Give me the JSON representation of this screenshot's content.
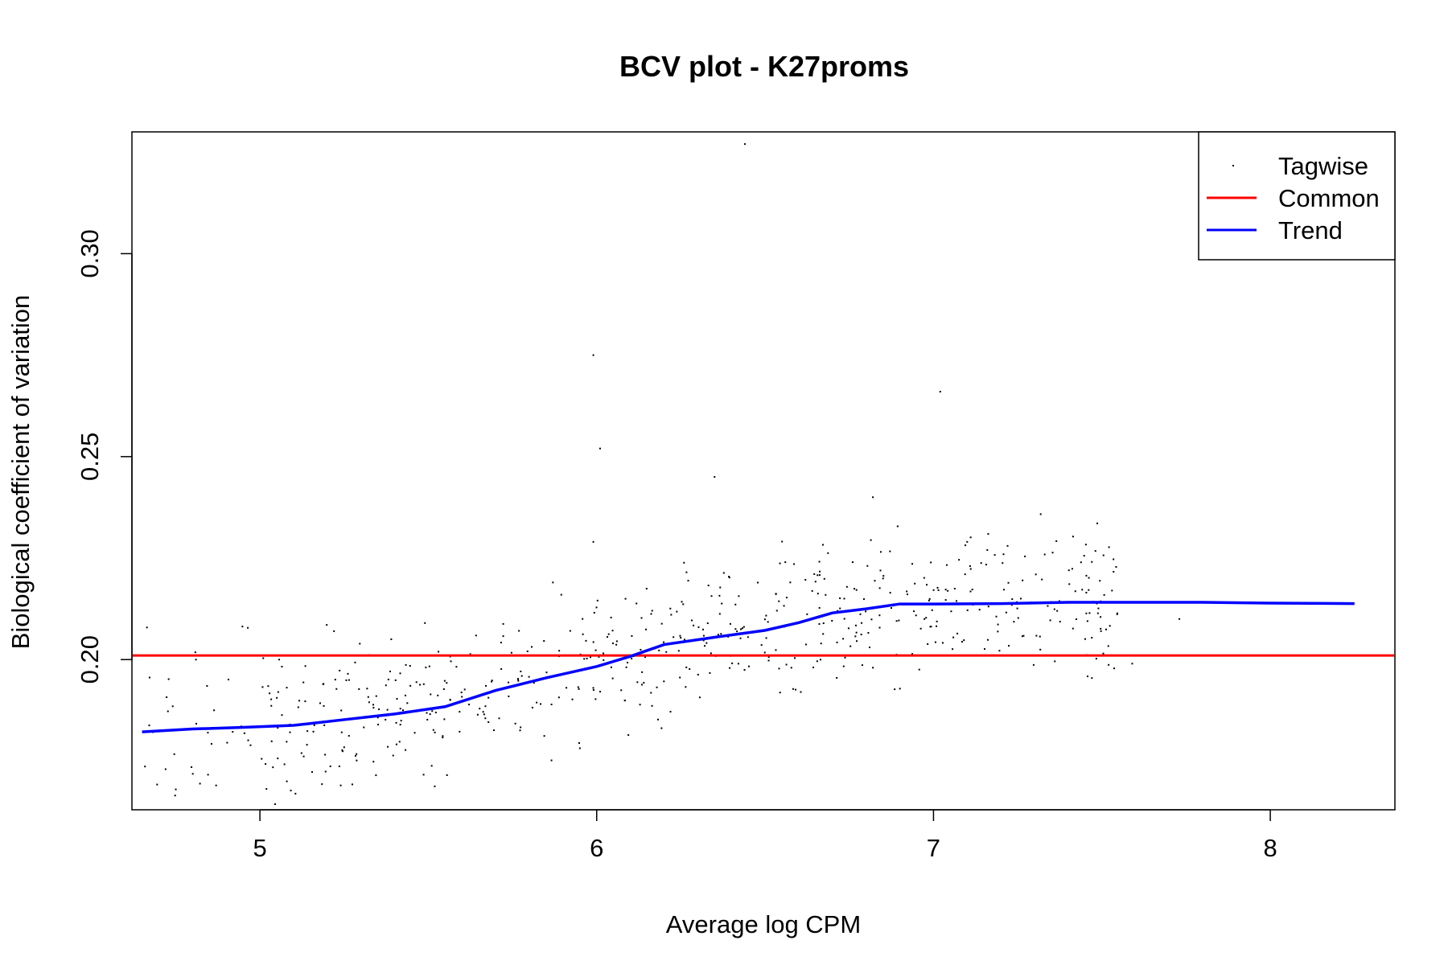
{
  "chart_data": {
    "type": "scatter",
    "title": "BCV plot - K27proms",
    "xlabel": "Average log CPM",
    "ylabel": "Biological coefficient of variation",
    "xlim": [
      4.62,
      8.37
    ],
    "ylim": [
      0.163,
      0.33
    ],
    "x_ticks": [
      5,
      6,
      7,
      8
    ],
    "x_tick_labels": [
      "5",
      "6",
      "7",
      "8"
    ],
    "y_ticks": [
      0.2,
      0.25,
      0.3
    ],
    "y_tick_labels": [
      "0.20",
      "0.25",
      "0.30"
    ],
    "legend": {
      "position": "top-right",
      "entries": [
        {
          "label": "Tagwise",
          "kind": "point",
          "color": "#000000"
        },
        {
          "label": "Common",
          "kind": "line",
          "color": "#ff0000"
        },
        {
          "label": "Trend",
          "kind": "line",
          "color": "#0000ff"
        }
      ]
    },
    "series": [
      {
        "name": "Common",
        "kind": "hline",
        "color": "#ff0000",
        "y": 0.201
      },
      {
        "name": "Trend",
        "kind": "line",
        "color": "#0000ff",
        "x": [
          4.65,
          4.8,
          4.95,
          5.1,
          5.25,
          5.4,
          5.55,
          5.7,
          5.85,
          6.0,
          6.1,
          6.2,
          6.35,
          6.5,
          6.6,
          6.7,
          6.8,
          6.9,
          7.0,
          7.2,
          7.4,
          7.6,
          7.8,
          8.0,
          8.25
        ],
        "y": [
          0.1822,
          0.1829,
          0.1833,
          0.1838,
          0.1852,
          0.1866,
          0.1884,
          0.1924,
          0.1955,
          0.1983,
          0.2008,
          0.2037,
          0.2055,
          0.2072,
          0.2091,
          0.2115,
          0.2125,
          0.2137,
          0.2137,
          0.2138,
          0.2141,
          0.2141,
          0.2141,
          0.2139,
          0.2138
        ]
      },
      {
        "name": "Tagwise",
        "kind": "scatter",
        "color": "#000000",
        "outliers": [
          {
            "x": 6.44,
            "y": 0.327
          },
          {
            "x": 5.99,
            "y": 0.275
          },
          {
            "x": 7.02,
            "y": 0.266
          },
          {
            "x": 6.01,
            "y": 0.252
          },
          {
            "x": 6.35,
            "y": 0.245
          },
          {
            "x": 6.82,
            "y": 0.24
          },
          {
            "x": 5.99,
            "y": 0.229
          },
          {
            "x": 7.1,
            "y": 0.229
          },
          {
            "x": 7.22,
            "y": 0.228
          },
          {
            "x": 5.87,
            "y": 0.219
          },
          {
            "x": 6.56,
            "y": 0.224
          },
          {
            "x": 6.76,
            "y": 0.224
          },
          {
            "x": 7.53,
            "y": 0.217
          },
          {
            "x": 7.73,
            "y": 0.21
          },
          {
            "x": 5.49,
            "y": 0.209
          },
          {
            "x": 5.22,
            "y": 0.207
          },
          {
            "x": 5.39,
            "y": 0.205
          },
          {
            "x": 4.81,
            "y": 0.2
          },
          {
            "x": 7.59,
            "y": 0.199
          },
          {
            "x": 7.5,
            "y": 0.201
          },
          {
            "x": 6.82,
            "y": 0.198
          },
          {
            "x": 4.87,
            "y": 0.169
          },
          {
            "x": 5.24,
            "y": 0.169
          },
          {
            "x": 5.08,
            "y": 0.17
          },
          {
            "x": 4.72,
            "y": 0.173
          }
        ],
        "scatter_width": 0.0085,
        "n_points": 620,
        "trend_ref": "Trend"
      }
    ]
  }
}
